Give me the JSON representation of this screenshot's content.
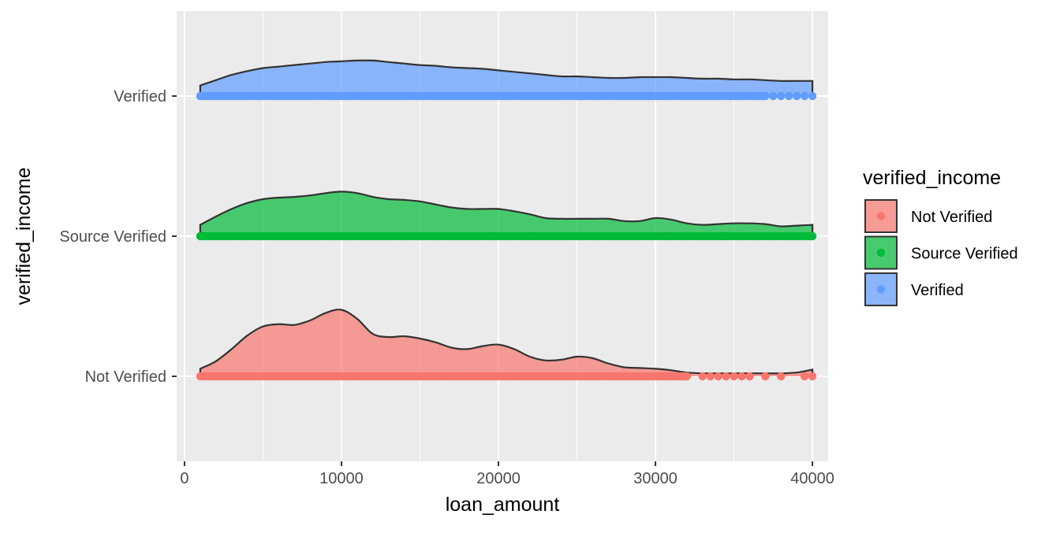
{
  "chart_data": {
    "type": "ridgeline-density-with-points",
    "xlabel": "loan_amount",
    "ylabel": "verified_income",
    "xlim": [
      -500,
      41000
    ],
    "x_ticks": [
      0,
      10000,
      20000,
      30000,
      40000
    ],
    "x_tick_labels": [
      "0",
      "10000",
      "20000",
      "30000",
      "40000"
    ],
    "categories": [
      "Not Verified",
      "Source Verified",
      "Verified"
    ],
    "grid": true,
    "panel_background": "#EBEBEB",
    "grid_color": "#FFFFFF",
    "legend": {
      "title": "verified_income",
      "position": "right",
      "items": [
        {
          "label": "Not Verified",
          "fill": "#F8766D"
        },
        {
          "label": "Source Verified",
          "fill": "#00BA38"
        },
        {
          "label": "Verified",
          "fill": "#619CFF"
        }
      ]
    },
    "series": [
      {
        "name": "Not Verified",
        "color": "#F8766D",
        "x_range": [
          1000,
          40000
        ],
        "density_x": [
          1000,
          2000,
          3000,
          4000,
          5000,
          6000,
          7000,
          8000,
          9000,
          10000,
          11000,
          12000,
          13000,
          14000,
          15000,
          16000,
          17000,
          18000,
          19000,
          20000,
          21000,
          22000,
          23000,
          24000,
          25000,
          26000,
          27000,
          28000,
          29000,
          30000,
          31000,
          32000,
          33000,
          34000,
          35000,
          36000,
          37000,
          38000,
          39000,
          40000
        ],
        "density_height": [
          0.1,
          0.2,
          0.36,
          0.54,
          0.66,
          0.69,
          0.68,
          0.74,
          0.84,
          0.88,
          0.76,
          0.56,
          0.52,
          0.53,
          0.5,
          0.45,
          0.38,
          0.36,
          0.4,
          0.42,
          0.36,
          0.26,
          0.21,
          0.22,
          0.26,
          0.24,
          0.17,
          0.12,
          0.11,
          0.1,
          0.08,
          0.05,
          0.04,
          0.04,
          0.04,
          0.04,
          0.04,
          0.04,
          0.05,
          0.09
        ],
        "points_dense_range": [
          1000,
          32000
        ],
        "points_sparse": [
          32000,
          33000,
          33500,
          34000,
          34500,
          35000,
          35500,
          36000,
          37000,
          38000,
          39500,
          40000
        ]
      },
      {
        "name": "Source Verified",
        "color": "#00BA38",
        "x_range": [
          1000,
          40000
        ],
        "density_x": [
          1000,
          2000,
          3000,
          4000,
          5000,
          6000,
          7000,
          8000,
          9000,
          10000,
          11000,
          12000,
          13000,
          14000,
          15000,
          16000,
          17000,
          18000,
          19000,
          20000,
          21000,
          22000,
          23000,
          24000,
          25000,
          26000,
          27000,
          28000,
          29000,
          30000,
          31000,
          32000,
          33000,
          34000,
          35000,
          36000,
          37000,
          38000,
          39000,
          40000
        ],
        "density_height": [
          0.15,
          0.26,
          0.36,
          0.44,
          0.49,
          0.51,
          0.52,
          0.54,
          0.57,
          0.59,
          0.57,
          0.52,
          0.49,
          0.48,
          0.46,
          0.42,
          0.38,
          0.36,
          0.36,
          0.36,
          0.33,
          0.29,
          0.24,
          0.23,
          0.23,
          0.23,
          0.23,
          0.2,
          0.2,
          0.24,
          0.22,
          0.17,
          0.15,
          0.16,
          0.17,
          0.17,
          0.16,
          0.13,
          0.14,
          0.15
        ],
        "points_dense_range": [
          1000,
          40000
        ],
        "points_sparse": []
      },
      {
        "name": "Verified",
        "color": "#619CFF",
        "x_range": [
          1000,
          40000
        ],
        "density_x": [
          1000,
          2000,
          3000,
          4000,
          5000,
          6000,
          7000,
          8000,
          9000,
          10000,
          11000,
          12000,
          13000,
          14000,
          15000,
          16000,
          17000,
          18000,
          19000,
          20000,
          21000,
          22000,
          23000,
          24000,
          25000,
          26000,
          27000,
          28000,
          29000,
          30000,
          31000,
          32000,
          33000,
          34000,
          35000,
          36000,
          37000,
          38000,
          39000,
          40000
        ],
        "density_height": [
          0.14,
          0.21,
          0.28,
          0.33,
          0.37,
          0.39,
          0.41,
          0.43,
          0.45,
          0.46,
          0.47,
          0.47,
          0.45,
          0.43,
          0.41,
          0.4,
          0.38,
          0.37,
          0.36,
          0.34,
          0.32,
          0.3,
          0.28,
          0.26,
          0.26,
          0.25,
          0.24,
          0.24,
          0.25,
          0.25,
          0.25,
          0.24,
          0.23,
          0.23,
          0.22,
          0.22,
          0.21,
          0.2,
          0.2,
          0.2
        ],
        "points_dense_range": [
          1000,
          37000
        ],
        "points_sparse": [
          37500,
          38000,
          38500,
          39000,
          39500,
          40000
        ]
      }
    ]
  }
}
